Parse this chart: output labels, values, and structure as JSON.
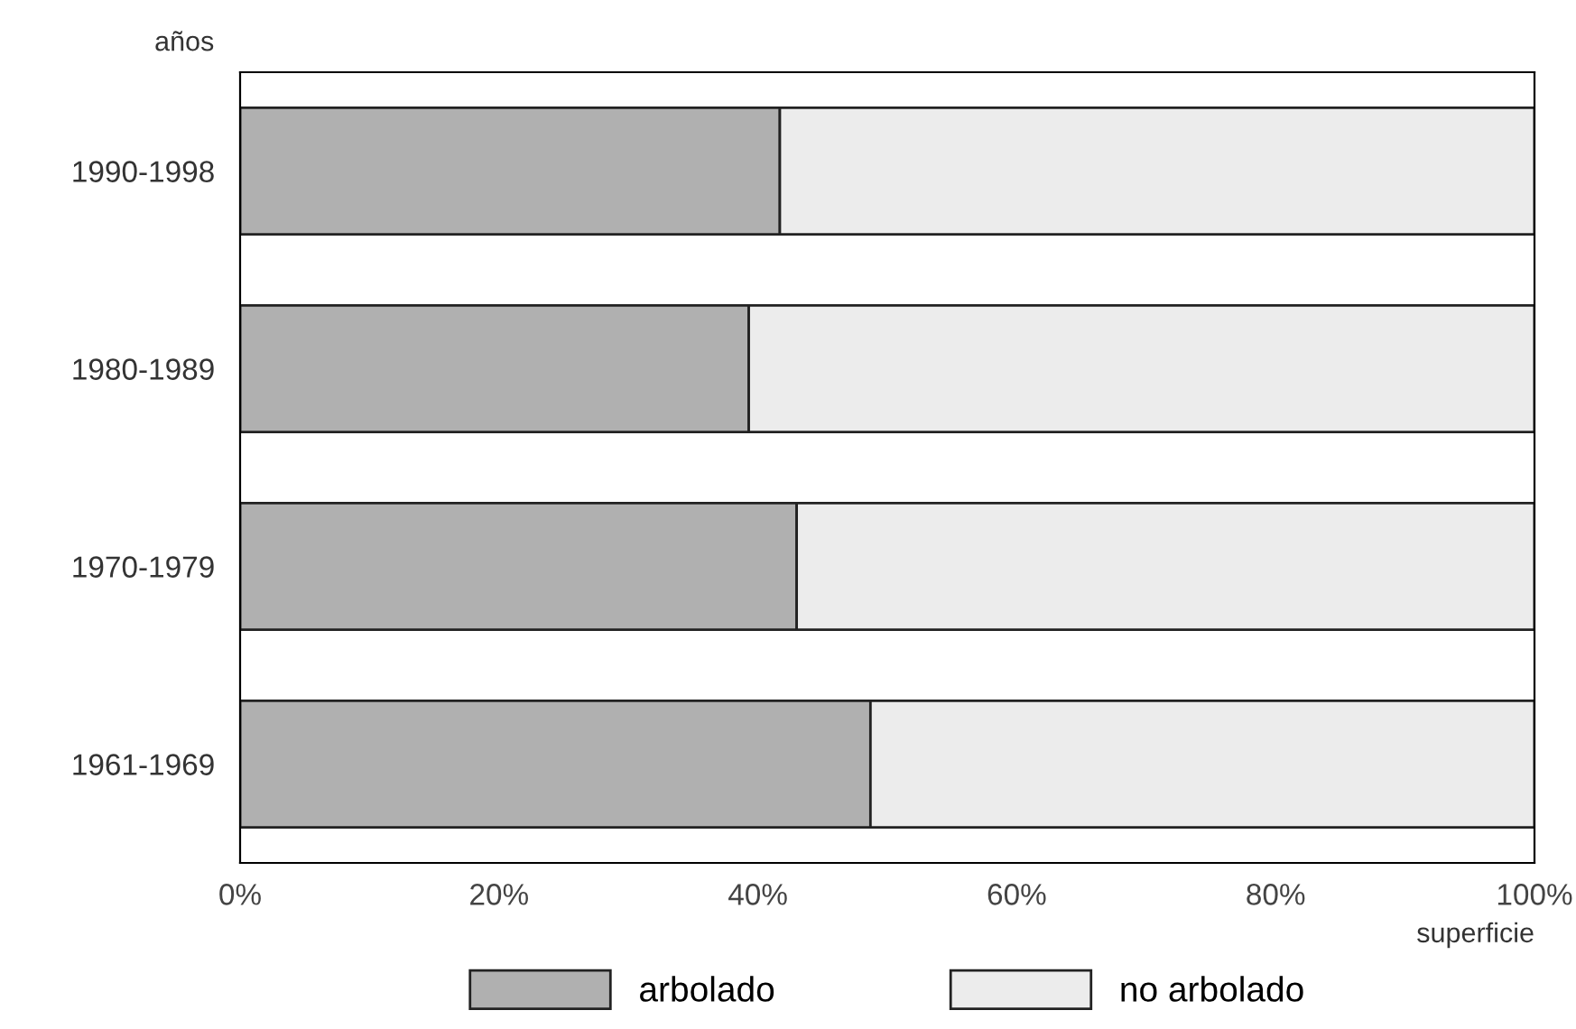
{
  "chart_data": {
    "type": "bar",
    "orientation": "horizontal",
    "stacked": true,
    "ylabel": "años",
    "xlabel": "superficie",
    "categories": [
      "1990-1998",
      "1980-1989",
      "1970-1979",
      "1961-1969"
    ],
    "series": [
      {
        "name": "arbolado",
        "color": "#b0b0b0",
        "values": [
          41.7,
          39.3,
          43.0,
          48.7
        ]
      },
      {
        "name": "no arbolado",
        "color": "#ececec",
        "values": [
          58.3,
          60.7,
          57.0,
          51.3
        ]
      }
    ],
    "xlim": [
      0,
      100
    ],
    "xticks": [
      {
        "value": 0,
        "label": "0%"
      },
      {
        "value": 20,
        "label": "20%"
      },
      {
        "value": 40,
        "label": "40%"
      },
      {
        "value": 60,
        "label": "60%"
      },
      {
        "value": 80,
        "label": "80%"
      },
      {
        "value": 100,
        "label": "100%"
      }
    ],
    "legend": "bottom",
    "grid": false
  }
}
